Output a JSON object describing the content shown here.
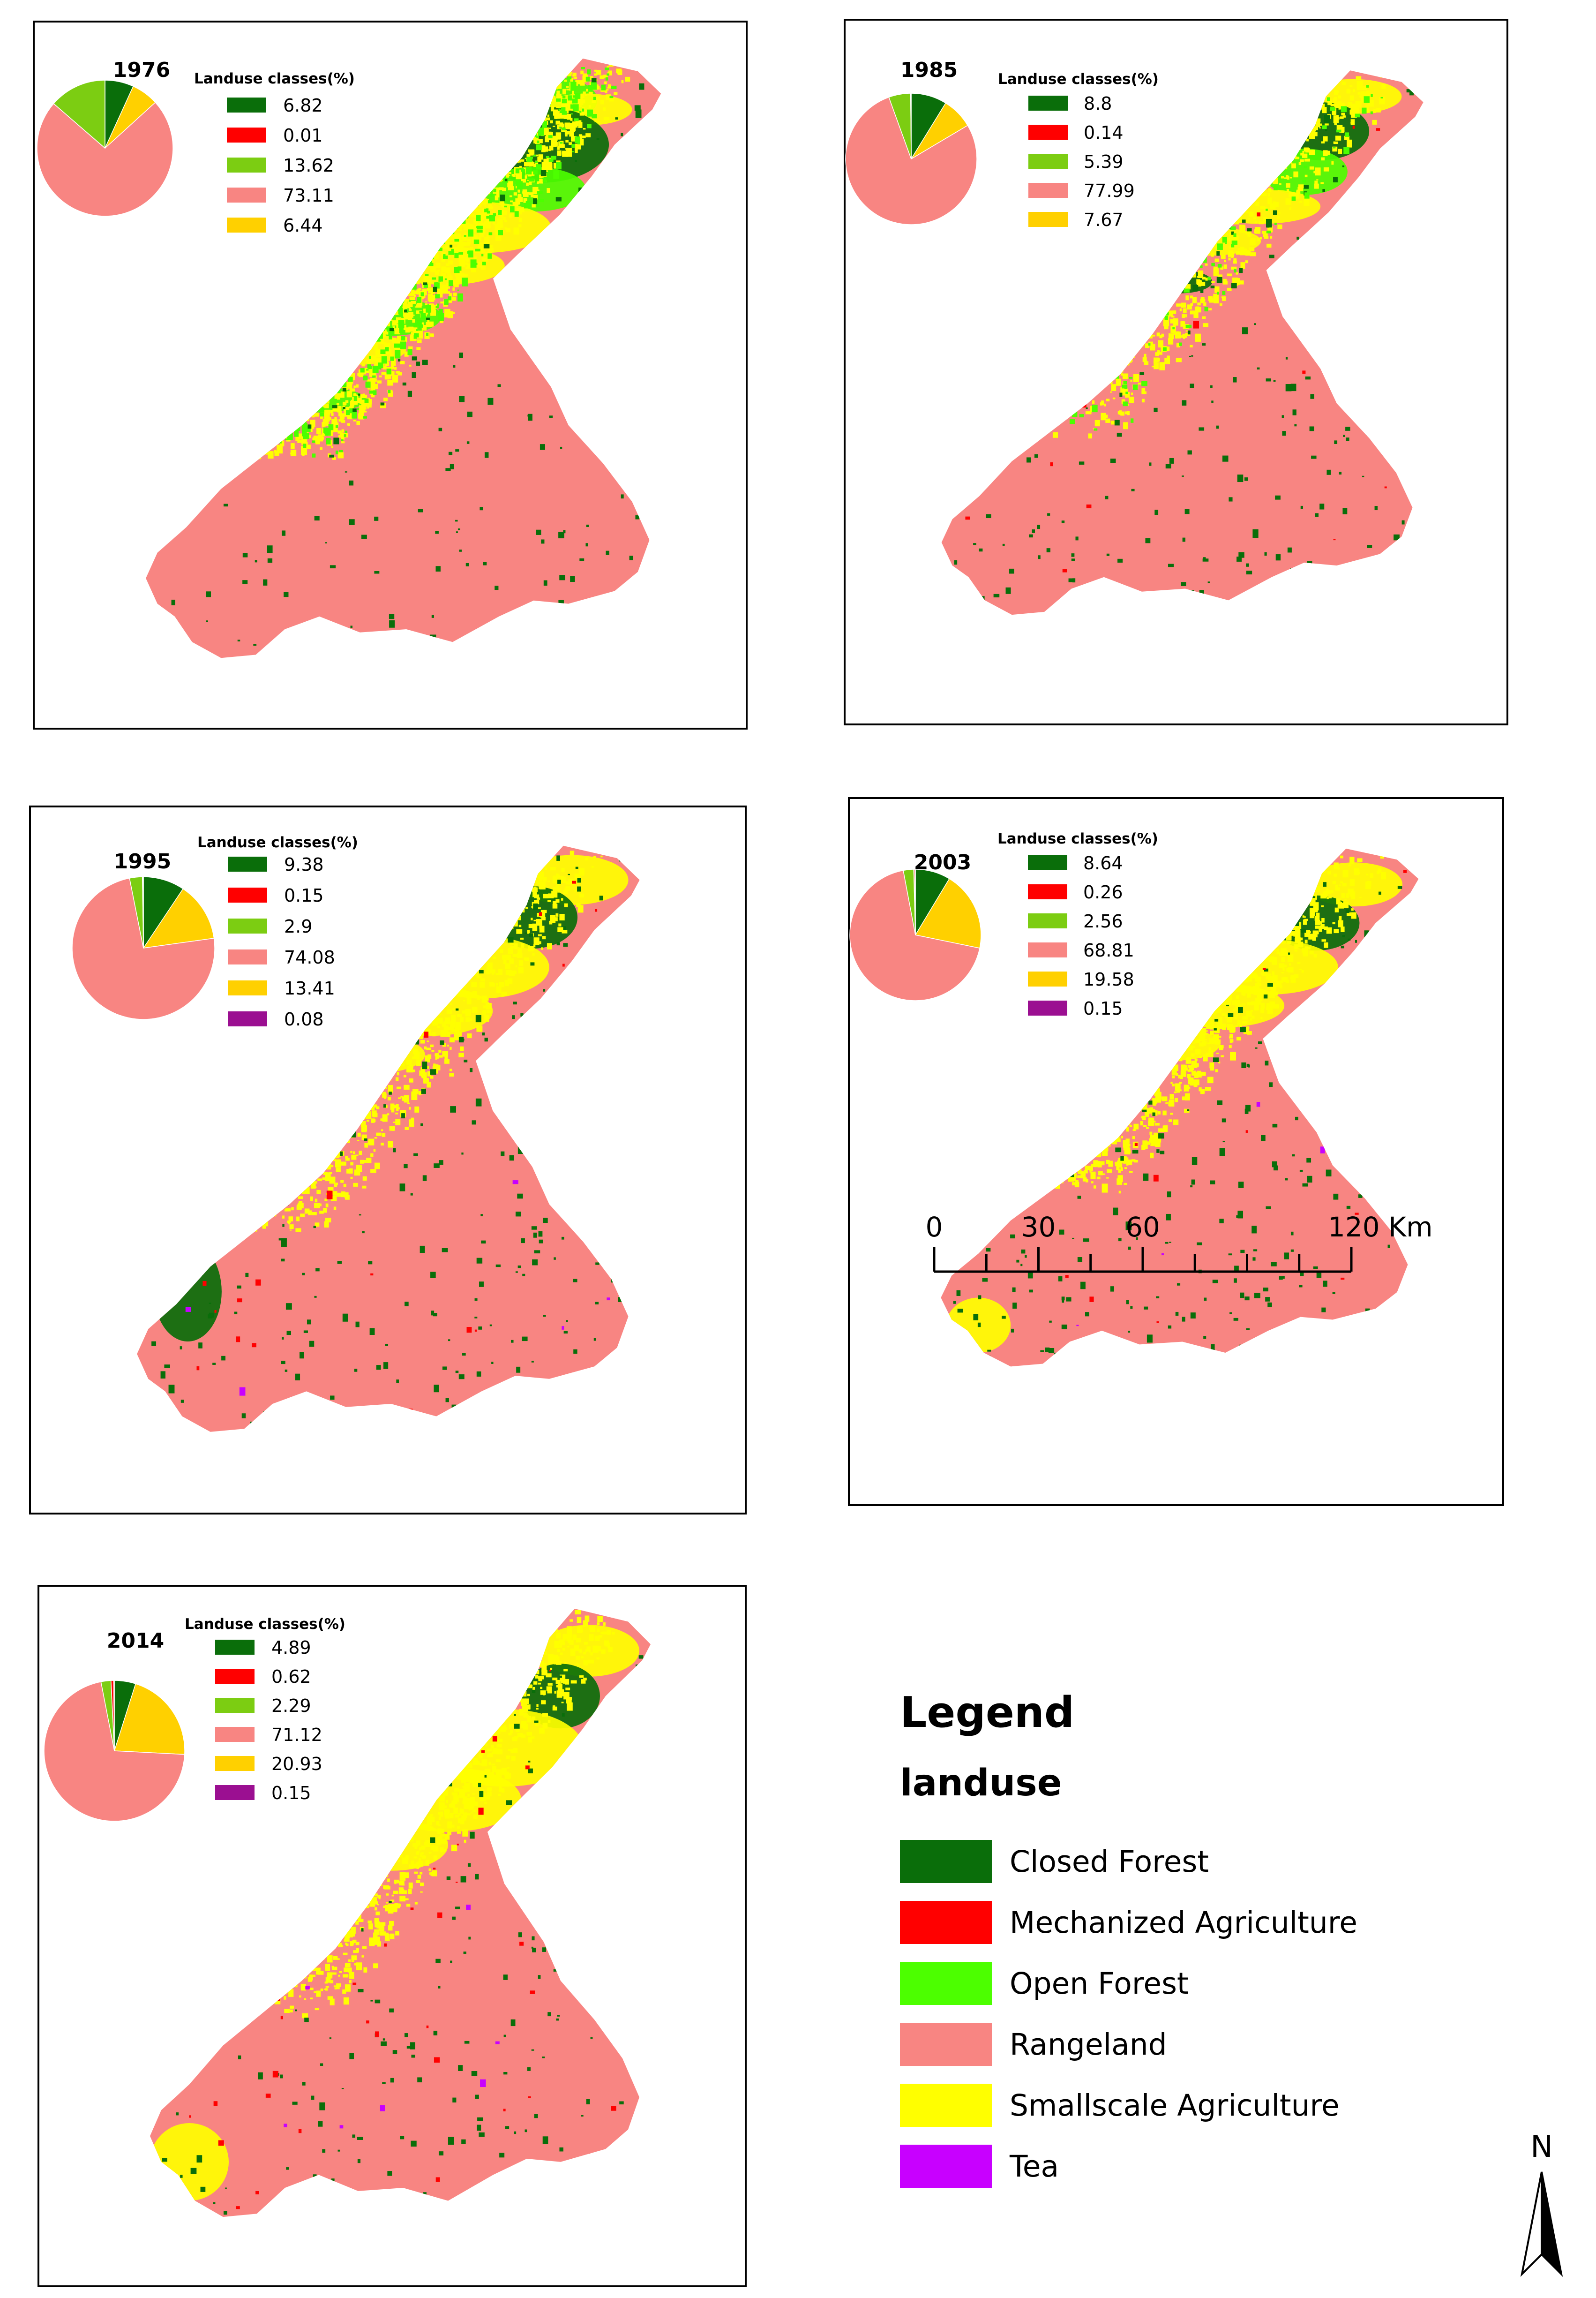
{
  "classes": [
    {
      "key": "closed_forest",
      "label": "Closed Forest",
      "color": "#0a6e0a"
    },
    {
      "key": "mechanized_agriculture",
      "label": "Mechanized Agriculture",
      "color": "#ff0000"
    },
    {
      "key": "open_forest",
      "label": "Open Forest",
      "color": "#4cff00"
    },
    {
      "key": "rangeland",
      "label": "Rangeland",
      "color": "#f88582"
    },
    {
      "key": "smallscale_agriculture",
      "label": "Smallscale Agriculture",
      "color": "#ffff00"
    },
    {
      "key": "tea",
      "label": "Tea",
      "color": "#c800ff"
    }
  ],
  "pie_colors": {
    "closed_forest": "#0a6e0a",
    "mechanized_agriculture": "#ff0000",
    "open_forest": "#7ccd12",
    "rangeland": "#f88582",
    "smallscale_agriculture": "#ffd000",
    "tea": "#9b0f91"
  },
  "chart_data": [
    {
      "type": "pie",
      "title": "1976",
      "subtitle": "Landuse classes(%)",
      "categories": [
        "closed_forest",
        "mechanized_agriculture",
        "open_forest",
        "rangeland",
        "smallscale_agriculture"
      ],
      "values": [
        6.82,
        0.01,
        13.62,
        73.11,
        6.44
      ],
      "value_labels": [
        "6.82",
        "0.01",
        "13.62",
        "73.11",
        "6.44"
      ]
    },
    {
      "type": "pie",
      "title": "1985",
      "subtitle": "Landuse classes(%)",
      "categories": [
        "closed_forest",
        "mechanized_agriculture",
        "open_forest",
        "rangeland",
        "smallscale_agriculture"
      ],
      "values": [
        8.8,
        0.14,
        5.39,
        77.99,
        7.67
      ],
      "value_labels": [
        "8.8",
        "0.14",
        "5.39",
        "77.99",
        "7.67"
      ]
    },
    {
      "type": "pie",
      "title": "1995",
      "subtitle": "Landuse classes(%)",
      "categories": [
        "closed_forest",
        "mechanized_agriculture",
        "open_forest",
        "rangeland",
        "smallscale_agriculture",
        "tea"
      ],
      "values": [
        9.38,
        0.15,
        2.9,
        74.08,
        13.41,
        0.08
      ],
      "value_labels": [
        "9.38",
        "0.15",
        "2.9",
        "74.08",
        "13.41",
        "0.08"
      ]
    },
    {
      "type": "pie",
      "title": "2003",
      "subtitle": "Landuse classes(%)",
      "categories": [
        "closed_forest",
        "mechanized_agriculture",
        "open_forest",
        "rangeland",
        "smallscale_agriculture",
        "tea"
      ],
      "values": [
        8.64,
        0.26,
        2.56,
        68.81,
        19.58,
        0.15
      ],
      "value_labels": [
        "8.64",
        "0.26",
        "2.56",
        "68.81",
        "19.58",
        "0.15"
      ]
    },
    {
      "type": "pie",
      "title": "2014",
      "subtitle": "Landuse classes(%)",
      "categories": [
        "closed_forest",
        "mechanized_agriculture",
        "open_forest",
        "rangeland",
        "smallscale_agriculture",
        "tea"
      ],
      "values": [
        4.89,
        0.62,
        2.29,
        71.12,
        20.93,
        0.15
      ],
      "value_labels": [
        "4.89",
        "0.62",
        "2.29",
        "71.12",
        "20.93",
        "0.15"
      ]
    }
  ],
  "scale_bar": {
    "labels": [
      "0",
      "30",
      "60",
      "120 Km"
    ],
    "ticks_km": [
      0,
      30,
      60,
      120
    ],
    "max_km": 120,
    "minor_step_km": 15
  },
  "legend": {
    "title": "Legend",
    "subtitle": "landuse"
  },
  "north_arrow": {
    "label": "N"
  }
}
